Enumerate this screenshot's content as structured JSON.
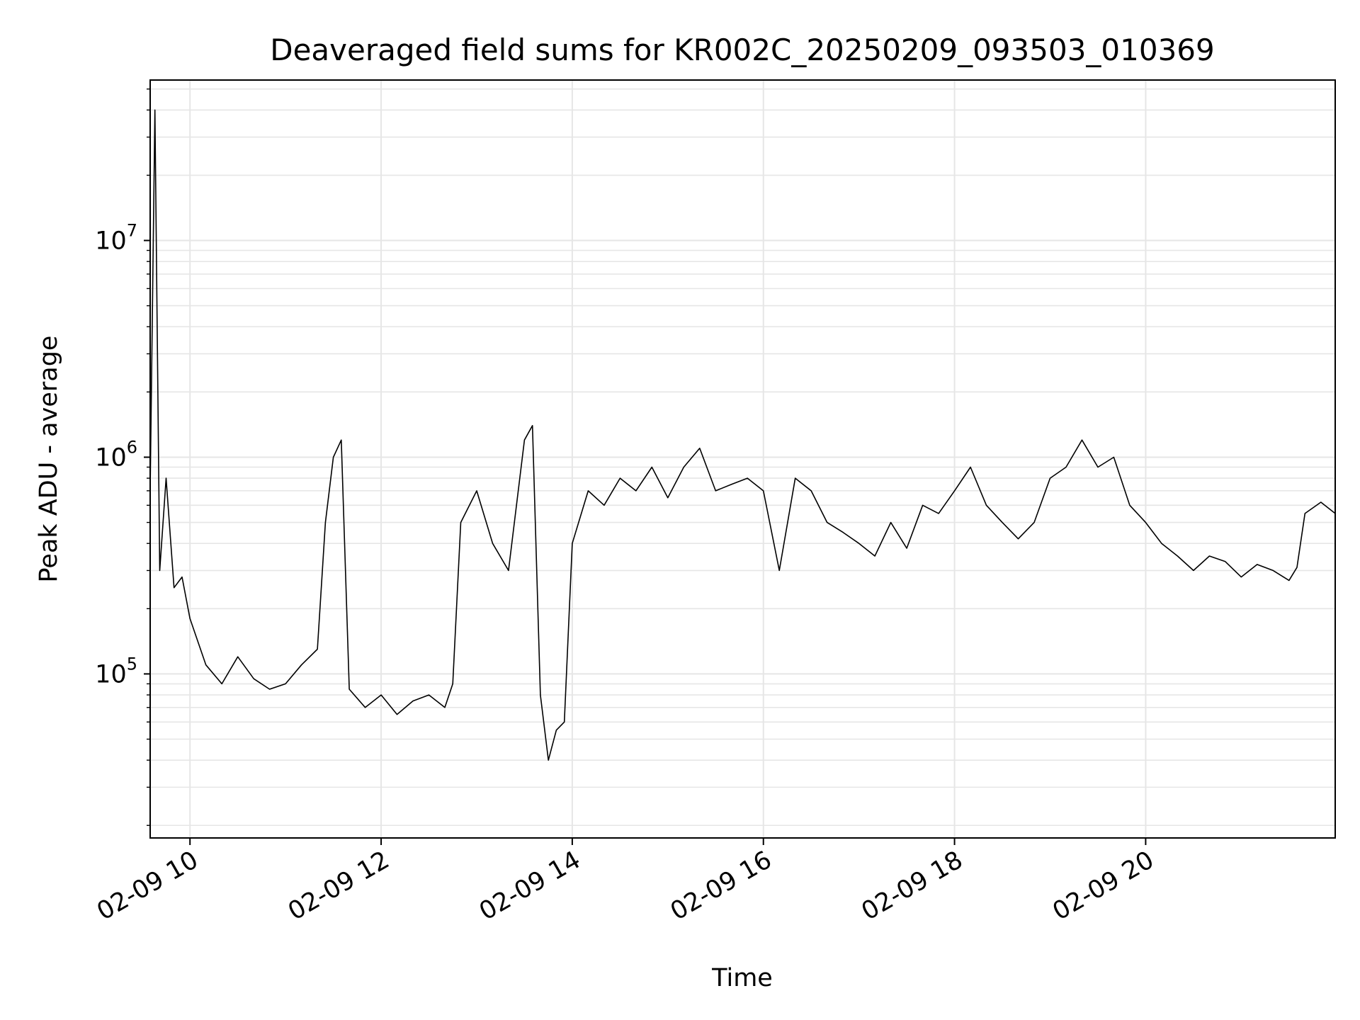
{
  "chart_data": {
    "type": "line",
    "title": "Deaveraged field sums for KR002C_20250209_093503_010369",
    "xlabel": "Time",
    "ylabel": "Peak ADU - average",
    "yscale": "log",
    "xlim": [
      "2025-02-09 09:35",
      "2025-02-09 21:59"
    ],
    "ylim": [
      17500,
      55000000
    ],
    "grid": true,
    "line_color": "#000000",
    "x_ticks": [
      "02-09 10",
      "02-09 12",
      "02-09 14",
      "02-09 16",
      "02-09 18",
      "02-09 20"
    ],
    "y_ticks": [
      {
        "base": "10",
        "exp": "5"
      },
      {
        "base": "10",
        "exp": "6"
      },
      {
        "base": "10",
        "exp": "7"
      }
    ],
    "series": [
      {
        "x": [
          "2025-02-09 09:35",
          "2025-02-09 09:38",
          "2025-02-09 09:41",
          "2025-02-09 09:45",
          "2025-02-09 09:50",
          "2025-02-09 09:55",
          "2025-02-09 10:00",
          "2025-02-09 10:10",
          "2025-02-09 10:20",
          "2025-02-09 10:30",
          "2025-02-09 10:40",
          "2025-02-09 10:50",
          "2025-02-09 11:00",
          "2025-02-09 11:10",
          "2025-02-09 11:20",
          "2025-02-09 11:25",
          "2025-02-09 11:30",
          "2025-02-09 11:35",
          "2025-02-09 11:40",
          "2025-02-09 11:50",
          "2025-02-09 12:00",
          "2025-02-09 12:10",
          "2025-02-09 12:20",
          "2025-02-09 12:30",
          "2025-02-09 12:40",
          "2025-02-09 12:45",
          "2025-02-09 12:50",
          "2025-02-09 13:00",
          "2025-02-09 13:10",
          "2025-02-09 13:20",
          "2025-02-09 13:30",
          "2025-02-09 13:35",
          "2025-02-09 13:40",
          "2025-02-09 13:45",
          "2025-02-09 13:50",
          "2025-02-09 13:55",
          "2025-02-09 14:00",
          "2025-02-09 14:10",
          "2025-02-09 14:20",
          "2025-02-09 14:30",
          "2025-02-09 14:40",
          "2025-02-09 14:50",
          "2025-02-09 15:00",
          "2025-02-09 15:10",
          "2025-02-09 15:20",
          "2025-02-09 15:30",
          "2025-02-09 15:40",
          "2025-02-09 15:50",
          "2025-02-09 16:00",
          "2025-02-09 16:10",
          "2025-02-09 16:20",
          "2025-02-09 16:30",
          "2025-02-09 16:40",
          "2025-02-09 16:50",
          "2025-02-09 17:00",
          "2025-02-09 17:10",
          "2025-02-09 17:20",
          "2025-02-09 17:30",
          "2025-02-09 17:40",
          "2025-02-09 17:50",
          "2025-02-09 18:00",
          "2025-02-09 18:10",
          "2025-02-09 18:20",
          "2025-02-09 18:30",
          "2025-02-09 18:40",
          "2025-02-09 18:50",
          "2025-02-09 19:00",
          "2025-02-09 19:10",
          "2025-02-09 19:20",
          "2025-02-09 19:30",
          "2025-02-09 19:40",
          "2025-02-09 19:50",
          "2025-02-09 20:00",
          "2025-02-09 20:10",
          "2025-02-09 20:20",
          "2025-02-09 20:30",
          "2025-02-09 20:40",
          "2025-02-09 20:50",
          "2025-02-09 21:00",
          "2025-02-09 21:10",
          "2025-02-09 21:20",
          "2025-02-09 21:30",
          "2025-02-09 21:35",
          "2025-02-09 21:40",
          "2025-02-09 21:50",
          "2025-02-09 21:59"
        ],
        "y": [
          700000,
          40000000,
          300000,
          800000,
          250000,
          280000,
          180000,
          110000,
          90000,
          120000,
          95000,
          85000,
          90000,
          110000,
          130000,
          500000,
          1000000,
          1200000,
          85000,
          70000,
          80000,
          65000,
          75000,
          80000,
          70000,
          90000,
          500000,
          700000,
          400000,
          300000,
          1200000,
          1400000,
          80000,
          40000,
          55000,
          60000,
          400000,
          700000,
          600000,
          800000,
          700000,
          900000,
          650000,
          900000,
          1100000,
          700000,
          750000,
          800000,
          700000,
          300000,
          800000,
          700000,
          500000,
          450000,
          400000,
          350000,
          500000,
          380000,
          600000,
          550000,
          700000,
          900000,
          600000,
          500000,
          420000,
          500000,
          800000,
          900000,
          1200000,
          900000,
          1000000,
          600000,
          500000,
          400000,
          350000,
          300000,
          350000,
          330000,
          280000,
          320000,
          300000,
          270000,
          310000,
          550000,
          620000,
          550000
        ]
      }
    ]
  }
}
